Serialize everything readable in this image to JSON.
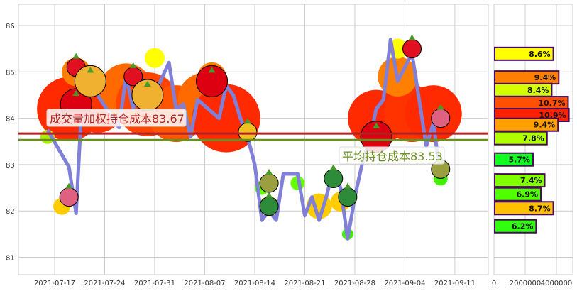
{
  "chart_data": [
    {
      "type": "line",
      "ylim": [
        80.6,
        86.45
      ],
      "yticks": [
        "81",
        "82",
        "83",
        "84",
        "85",
        "86"
      ],
      "xticks": [
        "2021-07-17",
        "2021-07-24",
        "2021-07-31",
        "2021-08-07",
        "2021-08-14",
        "2021-08-21",
        "2021-08-28",
        "2021-09-04",
        "2021-09-11"
      ],
      "grid": true,
      "series": [
        {
          "color": "#8080d8",
          "points": [
            [
              "2021-07-16",
              83.75
            ],
            [
              "2021-07-19",
              82.95
            ],
            [
              "2021-07-20",
              81.95
            ],
            [
              "2021-07-21",
              84.9
            ],
            [
              "2021-07-22",
              85.1
            ],
            [
              "2021-07-23",
              84.5
            ],
            [
              "2021-07-26",
              83.8
            ],
            [
              "2021-07-27",
              84.9
            ],
            [
              "2021-07-28",
              84.2
            ],
            [
              "2021-07-29",
              85.0
            ],
            [
              "2021-07-30",
              84.2
            ],
            [
              "2021-08-02",
              85.2
            ],
            [
              "2021-08-03",
              84.2
            ],
            [
              "2021-08-04",
              84.3
            ],
            [
              "2021-08-05",
              83.6
            ],
            [
              "2021-08-06",
              84.4
            ],
            [
              "2021-08-09",
              84.0
            ],
            [
              "2021-08-10",
              84.7
            ],
            [
              "2021-08-11",
              84.5
            ],
            [
              "2021-08-12",
              84.0
            ],
            [
              "2021-08-13",
              83.6
            ],
            [
              "2021-08-14",
              83.0
            ],
            [
              "2021-08-15",
              81.8
            ],
            [
              "2021-08-16",
              82.0
            ],
            [
              "2021-08-17",
              81.8
            ],
            [
              "2021-08-18",
              82.8
            ],
            [
              "2021-08-20",
              82.8
            ],
            [
              "2021-08-21",
              81.9
            ],
            [
              "2021-08-22",
              82.3
            ],
            [
              "2021-08-23",
              81.8
            ],
            [
              "2021-08-24",
              82.3
            ],
            [
              "2021-08-25",
              82.9
            ],
            [
              "2021-08-26",
              82.5
            ],
            [
              "2021-08-27",
              81.4
            ],
            [
              "2021-08-28",
              82.3
            ],
            [
              "2021-08-29",
              83.0
            ],
            [
              "2021-08-30",
              83.5
            ],
            [
              "2021-08-31",
              84.2
            ],
            [
              "2021-09-01",
              84.4
            ],
            [
              "2021-09-02",
              85.7
            ],
            [
              "2021-09-03",
              84.8
            ],
            [
              "2021-09-05",
              85.4
            ],
            [
              "2021-09-07",
              83.4
            ],
            [
              "2021-09-08",
              83.9
            ],
            [
              "2021-09-09",
              82.7
            ]
          ]
        }
      ],
      "bubbles": [
        [
          "2021-07-19",
          84.2,
          45,
          "#ff2a00"
        ],
        [
          "2021-07-23",
          84.3,
          40,
          "#ff3300"
        ],
        [
          "2021-07-27",
          84.6,
          38,
          "#ff6a00"
        ],
        [
          "2021-07-30",
          84.3,
          45,
          "#ff4400"
        ],
        [
          "2021-08-03",
          84.1,
          40,
          "#ff5500"
        ],
        [
          "2021-08-07",
          84.4,
          38,
          "#ff6a00"
        ],
        [
          "2021-08-10",
          84.0,
          48,
          "#ff2a00"
        ],
        [
          "2021-07-20",
          85.0,
          20,
          "#ff8000"
        ],
        [
          "2021-07-31",
          85.3,
          14,
          "#ffff00"
        ],
        [
          "2021-08-08",
          84.9,
          20,
          "#ff8000"
        ],
        [
          "2021-07-18",
          82.1,
          12,
          "#ffcc00"
        ],
        [
          "2021-08-16",
          82.1,
          14,
          "#ffcc00"
        ],
        [
          "2021-08-23",
          82.1,
          18,
          "#ffcc00"
        ],
        [
          "2021-08-26",
          82.2,
          14,
          "#ffcc00"
        ],
        [
          "2021-08-31",
          84.0,
          40,
          "#ff2a00"
        ],
        [
          "2021-09-05",
          84.1,
          40,
          "#ff3300"
        ],
        [
          "2021-09-08",
          84.1,
          40,
          "#ff2a00"
        ],
        [
          "2021-09-03",
          84.9,
          28,
          "#ff8000"
        ],
        [
          "2021-09-03",
          85.5,
          14,
          "#ffff00"
        ],
        [
          "2021-08-15",
          82.5,
          10,
          "#66ff00"
        ],
        [
          "2021-08-20",
          82.6,
          10,
          "#66ff00"
        ],
        [
          "2021-08-27",
          81.5,
          8,
          "#44ee00"
        ],
        [
          "2021-09-09",
          82.7,
          10,
          "#44ee00"
        ],
        [
          "2021-07-16",
          83.6,
          10,
          "#aaee00"
        ]
      ],
      "icons": [
        [
          "strawberry-icon",
          "2021-07-20",
          85.1,
          "#e01020"
        ],
        [
          "apple-icon",
          "2021-07-20",
          84.3,
          "#dd0010"
        ],
        [
          "pineapple-icon",
          "2021-07-22",
          84.8,
          "#f0b030"
        ],
        [
          "strawberry-icon",
          "2021-07-28",
          84.9,
          "#e01020"
        ],
        [
          "pineapple-icon",
          "2021-07-30",
          84.5,
          "#f0b030"
        ],
        [
          "apple-icon",
          "2021-08-08",
          84.8,
          "#dd0010"
        ],
        [
          "corn-icon",
          "2021-08-13",
          83.7,
          "#f0c020"
        ],
        [
          "pear-icon",
          "2021-08-16",
          82.6,
          "#9aa040"
        ],
        [
          "watermelon-icon",
          "2021-08-16",
          82.1,
          "#2e8b3a"
        ],
        [
          "watermelon-icon",
          "2021-08-25",
          82.7,
          "#2e8b3a"
        ],
        [
          "watermelon-icon",
          "2021-08-27",
          82.3,
          "#2e8b3a"
        ],
        [
          "apple-icon",
          "2021-08-31",
          83.6,
          "#dd0010"
        ],
        [
          "strawberry-icon",
          "2021-09-05",
          85.5,
          "#e01020"
        ],
        [
          "radish-icon",
          "2021-07-19",
          82.3,
          "#e06080"
        ],
        [
          "radish-icon",
          "2021-09-09",
          84.0,
          "#e06080"
        ],
        [
          "pear-icon",
          "2021-09-09",
          82.9,
          "#9aa040"
        ]
      ],
      "hlines": [
        {
          "label": "成交量加权持仓成本83.67",
          "value": 83.67,
          "color": "#b22222"
        },
        {
          "label": "平均持仓成本83.53",
          "value": 83.53,
          "color": "#6b8e23"
        }
      ]
    },
    {
      "type": "bar",
      "orientation": "horizontal",
      "xticks": [
        "0",
        "2000000",
        "4000000"
      ],
      "xlim": [
        0,
        5000000
      ],
      "bars": [
        {
          "price": 85.39,
          "volume": 3800000,
          "label": "8.6%",
          "color": "#ffff00"
        },
        {
          "price": 84.88,
          "volume": 4150000,
          "label": "9.4%",
          "color": "#ff8000"
        },
        {
          "price": 84.61,
          "volume": 3700000,
          "label": "8.4%",
          "color": "#d4ff00"
        },
        {
          "price": 84.33,
          "volume": 4750000,
          "label": "10.7%",
          "color": "#ff5000"
        },
        {
          "price": 84.07,
          "volume": 4800000,
          "label": "10.9%",
          "color": "#ff2000"
        },
        {
          "price": 83.86,
          "volume": 4100000,
          "label": "9.4%",
          "color": "#ffa000"
        },
        {
          "price": 83.57,
          "volume": 3400000,
          "label": "7.8%",
          "color": "#b0ff00"
        },
        {
          "price": 83.11,
          "volume": 2500000,
          "label": "5.7%",
          "color": "#10ff20"
        },
        {
          "price": 82.66,
          "volume": 3250000,
          "label": "7.4%",
          "color": "#80ff00"
        },
        {
          "price": 82.36,
          "volume": 3000000,
          "label": "6.9%",
          "color": "#50ff00"
        },
        {
          "price": 82.06,
          "volume": 3800000,
          "label": "8.7%",
          "color": "#ffc000"
        },
        {
          "price": 81.67,
          "volume": 2700000,
          "label": "6.2%",
          "color": "#30ff10"
        }
      ]
    }
  ]
}
